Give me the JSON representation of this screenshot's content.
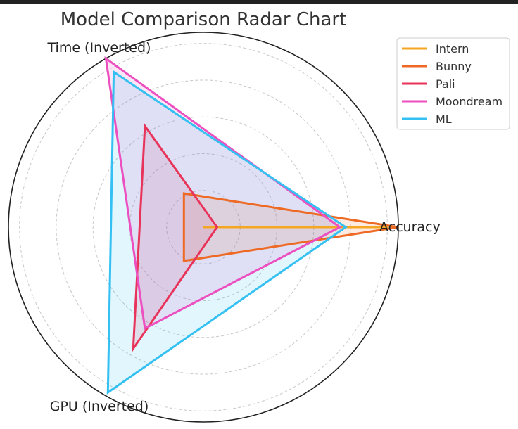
{
  "chart_data": {
    "type": "radar",
    "title": "Model Comparison Radar Chart",
    "axes": [
      "Accuracy",
      "Time (Inverted)",
      "GPU (Inverted)"
    ],
    "rlim": [
      0,
      1
    ],
    "grid": true,
    "legend_position": "top-right",
    "series": [
      {
        "name": "Intern",
        "color": "#f5a623",
        "values": [
          0.95,
          0.0,
          0.0
        ]
      },
      {
        "name": "Bunny",
        "color": "#ee6a24",
        "values": [
          1.0,
          0.2,
          0.2
        ]
      },
      {
        "name": "Pali",
        "color": "#e8335a",
        "values": [
          0.07,
          0.6,
          0.72
        ]
      },
      {
        "name": "Moondream",
        "color": "#ec4fbf",
        "values": [
          0.7,
          1.0,
          0.6
        ]
      },
      {
        "name": "ML",
        "color": "#34c0f2",
        "values": [
          0.73,
          0.92,
          0.98
        ]
      }
    ]
  }
}
